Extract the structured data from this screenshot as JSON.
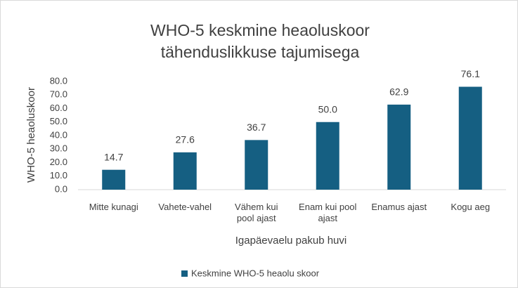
{
  "chart_data": {
    "type": "bar",
    "title": "WHO-5 keskmine heaoluskoor tähenduslikkuse tajumisega",
    "x_label": "Igapäevaelu pakub huvi",
    "y_label": "WHO-5  heaoluskoor",
    "categories": [
      "Mitte kunagi",
      "Vahete-vahel",
      "Vähem kui pool ajast",
      "Enam kui pool ajast",
      "Enamus ajast",
      "Kogu aeg"
    ],
    "series": [
      {
        "name": "Keskmine WHO-5 heaolu skoor",
        "color": "#155f82",
        "values": [
          14.7,
          27.6,
          36.7,
          50,
          62.9,
          76.1
        ],
        "value_labels": [
          "14.7",
          "27.6",
          "36.7",
          "50.0",
          "62.9",
          "76.1"
        ]
      }
    ],
    "ylim": [
      0,
      80
    ],
    "yticks": [
      {
        "value": 0,
        "label": "0.0"
      },
      {
        "value": 10,
        "label": "10.0"
      },
      {
        "value": 20,
        "label": "20.0"
      },
      {
        "value": 30,
        "label": "30.0"
      },
      {
        "value": 40,
        "label": "40.0"
      },
      {
        "value": 50,
        "label": "50.0"
      },
      {
        "value": 60,
        "label": "60.0"
      },
      {
        "value": 70,
        "label": "70.0"
      },
      {
        "value": 80,
        "label": "80.0"
      }
    ],
    "grid": false,
    "legend": "bottom"
  }
}
